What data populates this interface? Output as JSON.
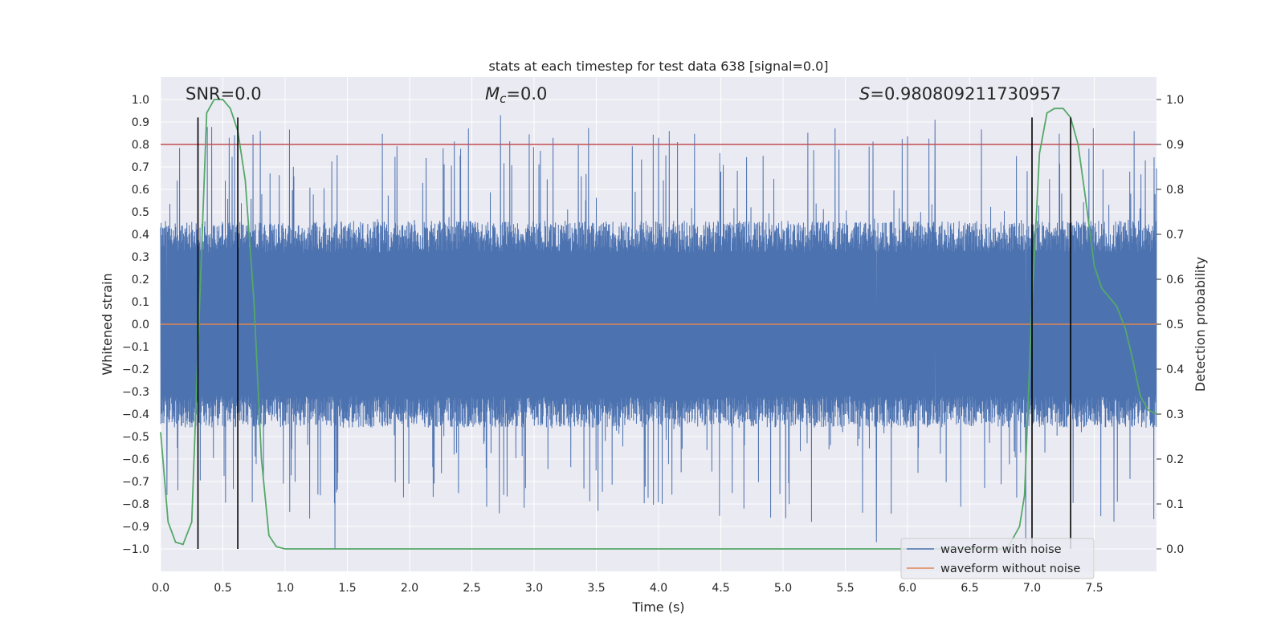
{
  "chart_data": {
    "type": "line",
    "title": "stats at each timestep for test data 638 [signal=0.0]",
    "xlabel": "Time (s)",
    "ylabel": "Whitened strain",
    "y2label": "Detection probability",
    "xlim": [
      0.0,
      8.0
    ],
    "ylim": [
      -1.1,
      1.1
    ],
    "y2lim": [
      -0.05,
      1.05
    ],
    "xticks": [
      0.0,
      0.5,
      1.0,
      1.5,
      2.0,
      2.5,
      3.0,
      3.5,
      4.0,
      4.5,
      5.0,
      5.5,
      6.0,
      6.5,
      7.0,
      7.5
    ],
    "yticks": [
      -1.0,
      -0.9,
      -0.8,
      -0.7,
      -0.6,
      -0.5,
      -0.4,
      -0.3,
      -0.2,
      -0.1,
      0.0,
      0.1,
      0.2,
      0.3,
      0.4,
      0.5,
      0.6,
      0.7,
      0.8,
      0.9,
      1.0
    ],
    "y2ticks": [
      0.0,
      0.1,
      0.2,
      0.3,
      0.4,
      0.5,
      0.6,
      0.7,
      0.8,
      0.9,
      1.0
    ],
    "grid": true,
    "legend": "lower-right",
    "annotations": {
      "snr": "SNR=0.0",
      "mc_symbol": "M",
      "mc_sub": "c",
      "mc_value": "=0.0",
      "s_symbol": "S",
      "s_value": "=0.980809211730957"
    },
    "series": [
      {
        "name": "waveform with noise",
        "color": "#4c72b0",
        "axis": "left",
        "noise_envelope": {
          "core_amplitude": 0.4,
          "peak_amplitude": 1.0,
          "samples_per_second": 512
        },
        "notable_peaks": [
          {
            "x": 0.55,
            "y": 0.83
          },
          {
            "x": 0.8,
            "y": 0.86
          },
          {
            "x": 2.73,
            "y": 0.93
          },
          {
            "x": 4.0,
            "y": 0.83
          },
          {
            "x": 6.22,
            "y": 0.91
          },
          {
            "x": 7.82,
            "y": 0.86
          },
          {
            "x": 1.4,
            "y": -1.0
          },
          {
            "x": 5.75,
            "y": -0.97
          },
          {
            "x": 6.95,
            "y": -0.98
          },
          {
            "x": 0.05,
            "y": -0.76
          }
        ]
      },
      {
        "name": "waveform without noise",
        "color": "#dd8452",
        "axis": "left",
        "x": [
          0.0,
          8.0
        ],
        "y": [
          0.0,
          0.0
        ]
      },
      {
        "name": "",
        "color": "#55a868",
        "axis": "right",
        "x": [
          0.0,
          0.06,
          0.12,
          0.18,
          0.25,
          0.31,
          0.37,
          0.43,
          0.5,
          0.56,
          0.62,
          0.68,
          0.75,
          0.81,
          0.87,
          0.93,
          1.0,
          1.5,
          2.0,
          3.0,
          4.0,
          5.0,
          6.0,
          6.8,
          6.9,
          6.94,
          7.0,
          7.06,
          7.12,
          7.18,
          7.25,
          7.31,
          7.37,
          7.43,
          7.5,
          7.56,
          7.62,
          7.68,
          7.75,
          7.81,
          7.87,
          7.93,
          8.0
        ],
        "y": [
          0.26,
          0.06,
          0.015,
          0.01,
          0.06,
          0.52,
          0.97,
          1.0,
          1.0,
          0.98,
          0.93,
          0.82,
          0.55,
          0.2,
          0.03,
          0.005,
          0.0,
          0.0,
          0.0,
          0.0,
          0.0,
          0.0,
          0.0,
          0.0,
          0.05,
          0.12,
          0.55,
          0.88,
          0.97,
          0.98,
          0.98,
          0.96,
          0.9,
          0.78,
          0.63,
          0.58,
          0.56,
          0.54,
          0.49,
          0.42,
          0.34,
          0.31,
          0.3
        ]
      },
      {
        "name": "",
        "color": "#c44e52",
        "axis": "right",
        "x": [
          0.0,
          8.0
        ],
        "y": [
          0.9,
          0.9
        ]
      }
    ],
    "vertical_lines": [
      0.3,
      0.62,
      7.0,
      7.31
    ],
    "vertical_line_color": "#000000",
    "vertical_line_range": [
      -1.0,
      0.92
    ]
  }
}
